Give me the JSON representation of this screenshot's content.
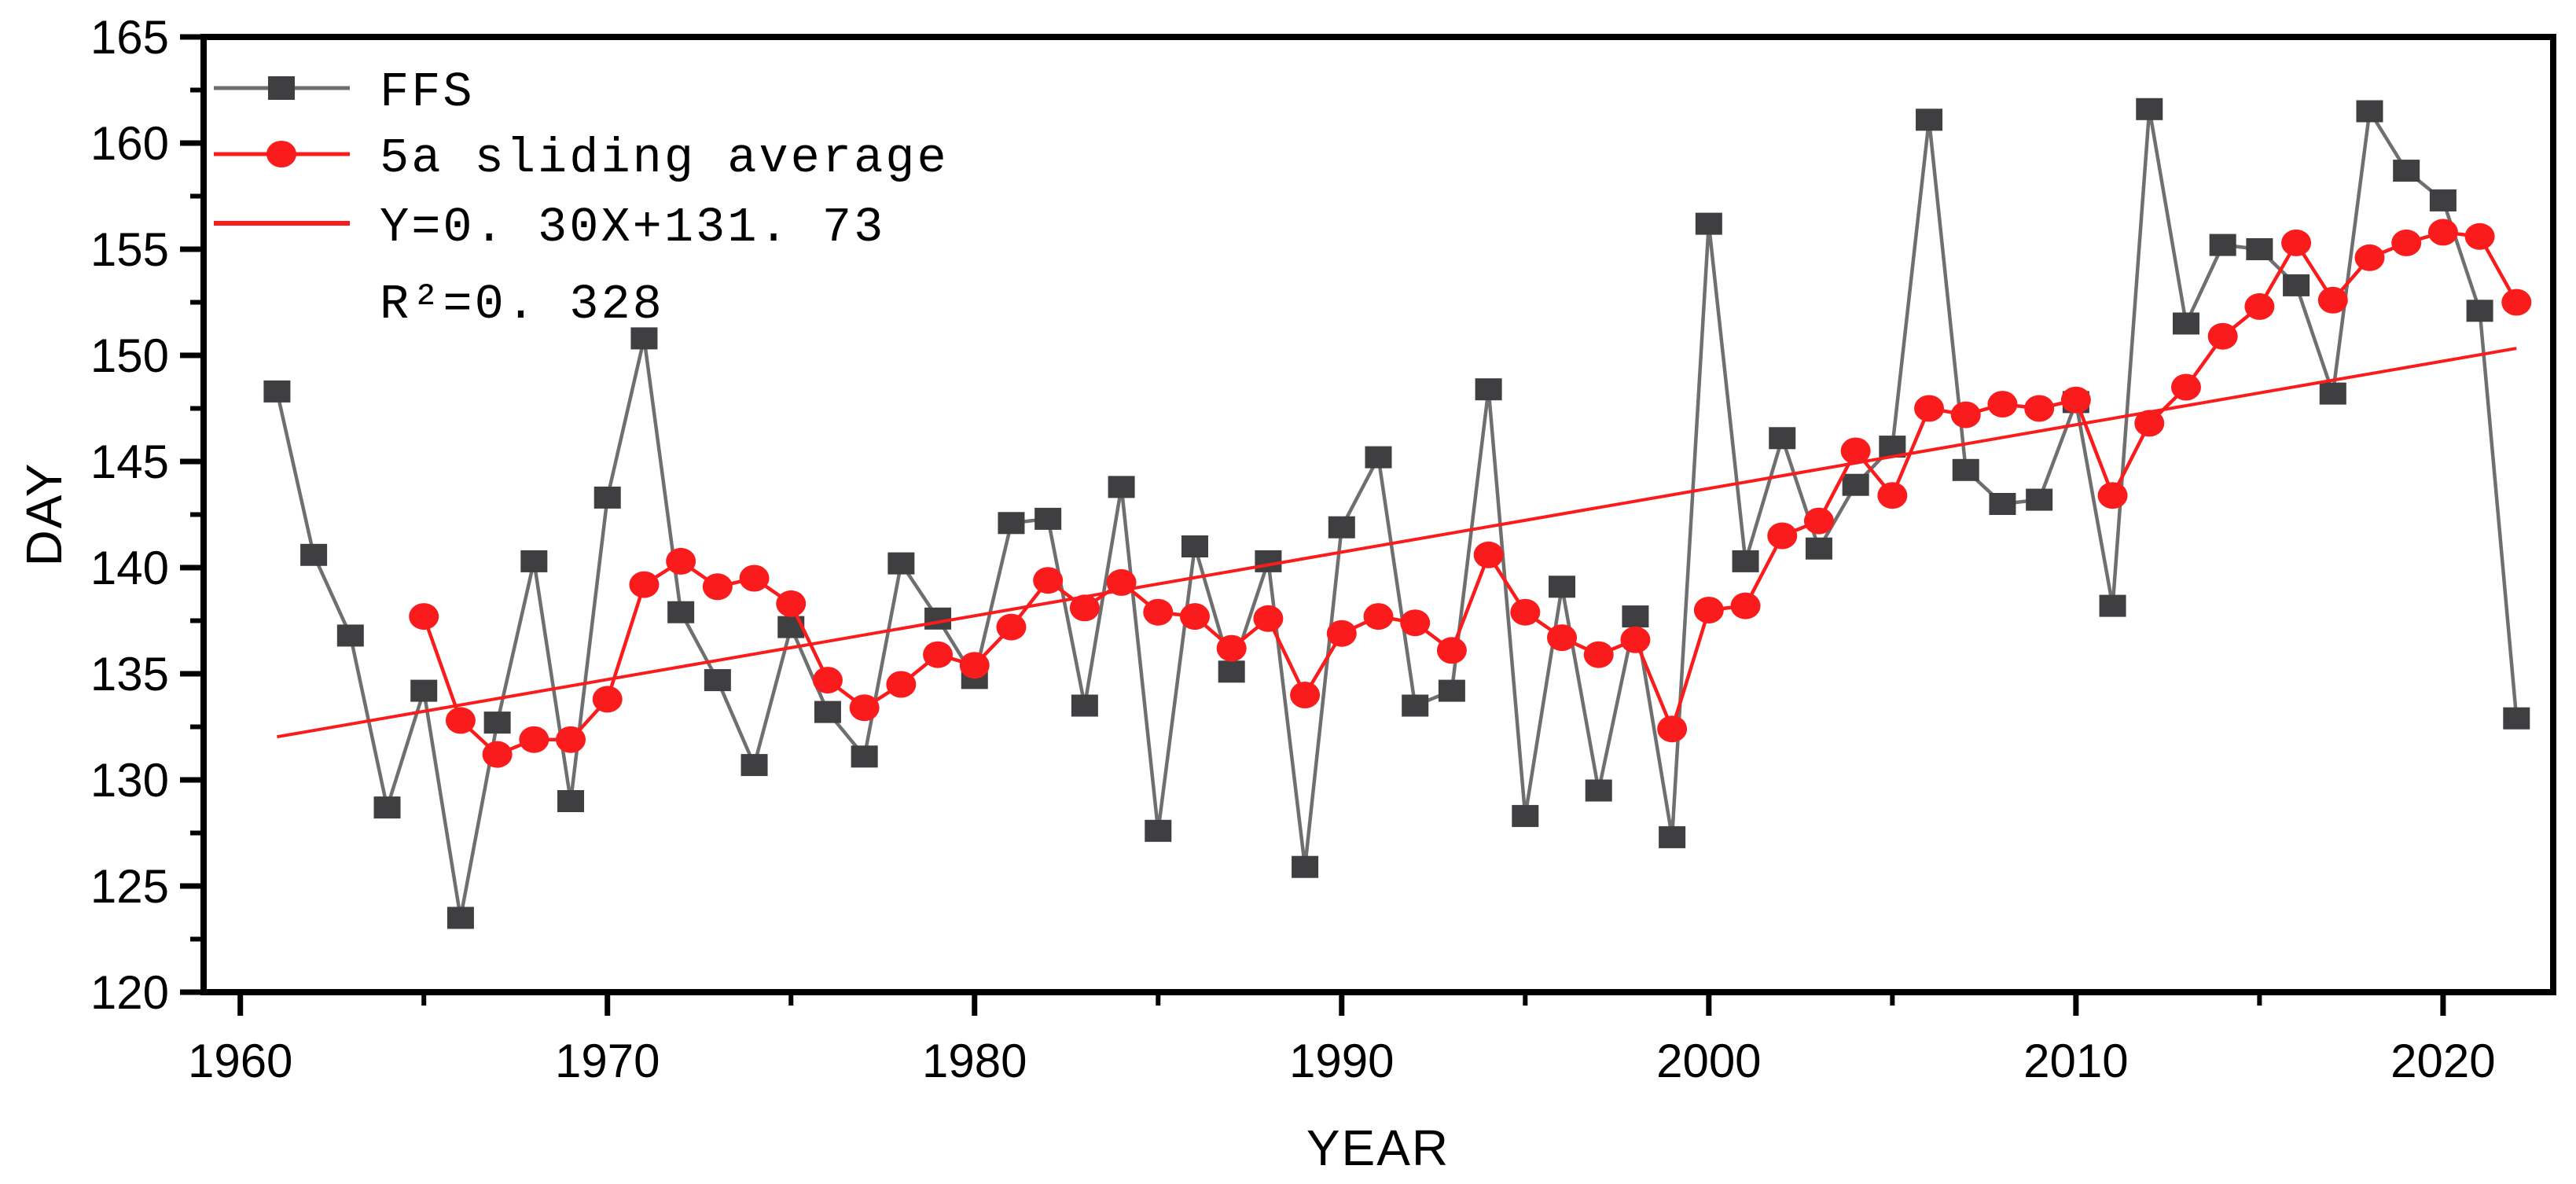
{
  "chart_data": {
    "type": "line",
    "title": "",
    "xlabel": "YEAR",
    "ylabel": "DAY",
    "x_range": [
      1959,
      2023
    ],
    "ylim": [
      120,
      165
    ],
    "grid": false,
    "legend_position": "top-left",
    "x_major_ticks": [
      1960,
      1970,
      1980,
      1990,
      2000,
      2010,
      2020
    ],
    "x_minor_ticks": [
      1965,
      1975,
      1985,
      1995,
      2005,
      2015
    ],
    "y_major_ticks": [
      120,
      125,
      130,
      135,
      140,
      145,
      150,
      155,
      160,
      165
    ],
    "y_minor_ticks": [
      122.5,
      127.5,
      132.5,
      137.5,
      142.5,
      147.5,
      152.5,
      157.5,
      162.5
    ],
    "x_tick_labels": [
      "1960",
      "1970",
      "1980",
      "1990",
      "2000",
      "2010",
      "2020"
    ],
    "y_tick_labels": [
      "120",
      "125",
      "130",
      "135",
      "140",
      "145",
      "150",
      "155",
      "160",
      "165"
    ],
    "series": [
      {
        "name": "FFS",
        "marker": "square",
        "marker_color": "#3f3f41",
        "line_color": "#6f6f6f",
        "start_year": 1961,
        "values": [
          148.3,
          140.6,
          136.8,
          128.7,
          134.2,
          123.5,
          132.7,
          140.3,
          129.0,
          143.3,
          150.8,
          137.9,
          134.7,
          130.7,
          137.2,
          133.2,
          131.1,
          140.2,
          137.6,
          134.8,
          142.1,
          142.3,
          133.5,
          143.8,
          127.6,
          141.0,
          135.1,
          140.3,
          125.9,
          141.9,
          145.2,
          133.5,
          134.2,
          148.4,
          128.3,
          139.1,
          129.5,
          137.7,
          127.3,
          156.2,
          140.3,
          146.1,
          140.9,
          143.9,
          145.7,
          161.1,
          144.6,
          143.0,
          143.2,
          147.8,
          138.2,
          161.6,
          151.5,
          155.2,
          155.0,
          153.3,
          148.2,
          161.5,
          158.7,
          157.3,
          152.1,
          132.9
        ]
      },
      {
        "name": "5a sliding average",
        "marker": "circle",
        "marker_color": "#fa1c1c",
        "line_color": "#fa1c1c",
        "start_year": 1965,
        "values": [
          137.7,
          132.8,
          131.2,
          131.9,
          131.9,
          133.8,
          139.2,
          140.3,
          139.1,
          139.5,
          138.3,
          134.7,
          133.4,
          134.5,
          135.9,
          135.4,
          137.2,
          139.4,
          138.1,
          139.3,
          137.9,
          137.7,
          136.2,
          137.6,
          134.0,
          136.9,
          137.7,
          137.4,
          136.1,
          140.6,
          137.9,
          136.7,
          135.9,
          136.6,
          132.4,
          138.0,
          138.2,
          141.5,
          142.2,
          145.5,
          143.4,
          147.5,
          147.2,
          147.7,
          147.5,
          147.9,
          143.4,
          146.8,
          148.5,
          150.9,
          152.3,
          155.3,
          152.6,
          154.6,
          155.3,
          155.8,
          155.6,
          152.5
        ]
      }
    ],
    "trend_line": {
      "equation_label": "Y=0. 30X+131. 73",
      "r_squared_label": "R²=0. 328",
      "slope": 0.3,
      "intercept": 131.73,
      "x_origin_year": 1960,
      "start_year": 1961,
      "end_year": 2022,
      "color": "#fa1c1c"
    }
  },
  "axes": {
    "x_label": "YEAR",
    "y_label": "DAY"
  },
  "legend": {
    "items": [
      {
        "label": "FFS"
      },
      {
        "label": "5a sliding average"
      },
      {
        "label": "Y=0. 30X+131. 73"
      },
      {
        "label": "R²=0. 328"
      }
    ]
  },
  "colors": {
    "ffs_marker": "#3f3f41",
    "ffs_line": "#6f6f6f",
    "red": "#fa1c1c",
    "axis": "#000000",
    "background": "#ffffff"
  }
}
